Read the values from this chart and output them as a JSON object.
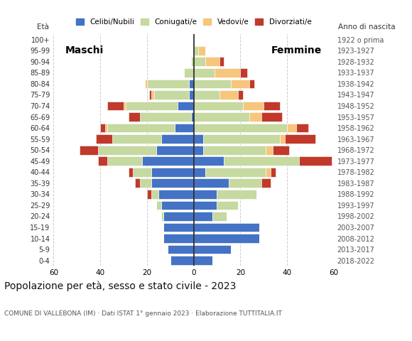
{
  "age_groups": [
    "0-4",
    "5-9",
    "10-14",
    "15-19",
    "20-24",
    "25-29",
    "30-34",
    "35-39",
    "40-44",
    "45-49",
    "50-54",
    "55-59",
    "60-64",
    "65-69",
    "70-74",
    "75-79",
    "80-84",
    "85-89",
    "90-94",
    "95-99",
    "100+"
  ],
  "birth_years": [
    "2018-2022",
    "2013-2017",
    "2008-2012",
    "2003-2007",
    "1998-2002",
    "1993-1997",
    "1988-1992",
    "1983-1987",
    "1978-1982",
    "1973-1977",
    "1968-1972",
    "1963-1967",
    "1958-1962",
    "1953-1957",
    "1948-1952",
    "1943-1947",
    "1938-1942",
    "1933-1937",
    "1928-1932",
    "1923-1927",
    "1922 o prima"
  ],
  "colors": {
    "celibe": "#4472c4",
    "coniugato": "#c5d9a0",
    "vedovo": "#f5c67c",
    "divorziato": "#c0392b"
  },
  "maschi": {
    "celibe": [
      10,
      11,
      13,
      13,
      13,
      14,
      15,
      18,
      18,
      22,
      16,
      14,
      8,
      1,
      7,
      2,
      2,
      0,
      0,
      0,
      0
    ],
    "coniugato": [
      0,
      0,
      0,
      0,
      1,
      2,
      3,
      5,
      8,
      15,
      25,
      21,
      29,
      22,
      22,
      15,
      18,
      4,
      1,
      0,
      0
    ],
    "vedovo": [
      0,
      0,
      0,
      0,
      0,
      0,
      0,
      0,
      0,
      0,
      0,
      0,
      1,
      0,
      1,
      1,
      1,
      0,
      0,
      0,
      0
    ],
    "divorziato": [
      0,
      0,
      0,
      0,
      0,
      0,
      2,
      2,
      2,
      4,
      8,
      7,
      2,
      5,
      7,
      1,
      0,
      0,
      0,
      0,
      0
    ]
  },
  "femmine": {
    "celibe": [
      8,
      16,
      28,
      28,
      8,
      10,
      10,
      15,
      5,
      13,
      4,
      4,
      0,
      0,
      0,
      0,
      0,
      0,
      0,
      0,
      0
    ],
    "coniugato": [
      0,
      0,
      0,
      0,
      6,
      9,
      17,
      14,
      26,
      32,
      27,
      33,
      40,
      24,
      21,
      11,
      16,
      9,
      5,
      2,
      0
    ],
    "vedovo": [
      0,
      0,
      0,
      0,
      0,
      0,
      0,
      0,
      2,
      0,
      3,
      2,
      4,
      5,
      9,
      8,
      8,
      11,
      6,
      3,
      0
    ],
    "divorziato": [
      0,
      0,
      0,
      0,
      0,
      0,
      0,
      4,
      2,
      14,
      7,
      13,
      5,
      9,
      7,
      2,
      2,
      3,
      2,
      0,
      0
    ]
  },
  "title": "Popolazione per età, sesso e stato civile - 2023",
  "subtitle": "COMUNE DI VALLEBONA (IM) · Dati ISTAT 1° gennaio 2023 · Elaborazione TUTTITALIA.IT",
  "xlabel_left": "Maschi",
  "xlabel_right": "Femmine",
  "ylabel_left": "Età",
  "ylabel_right": "Anno di nascita",
  "xlim": 60,
  "legend_labels": [
    "Celibi/Nubili",
    "Coniugati/e",
    "Vedovi/e",
    "Divorziati/e"
  ],
  "background_color": "#ffffff",
  "grid_color": "#cccccc"
}
